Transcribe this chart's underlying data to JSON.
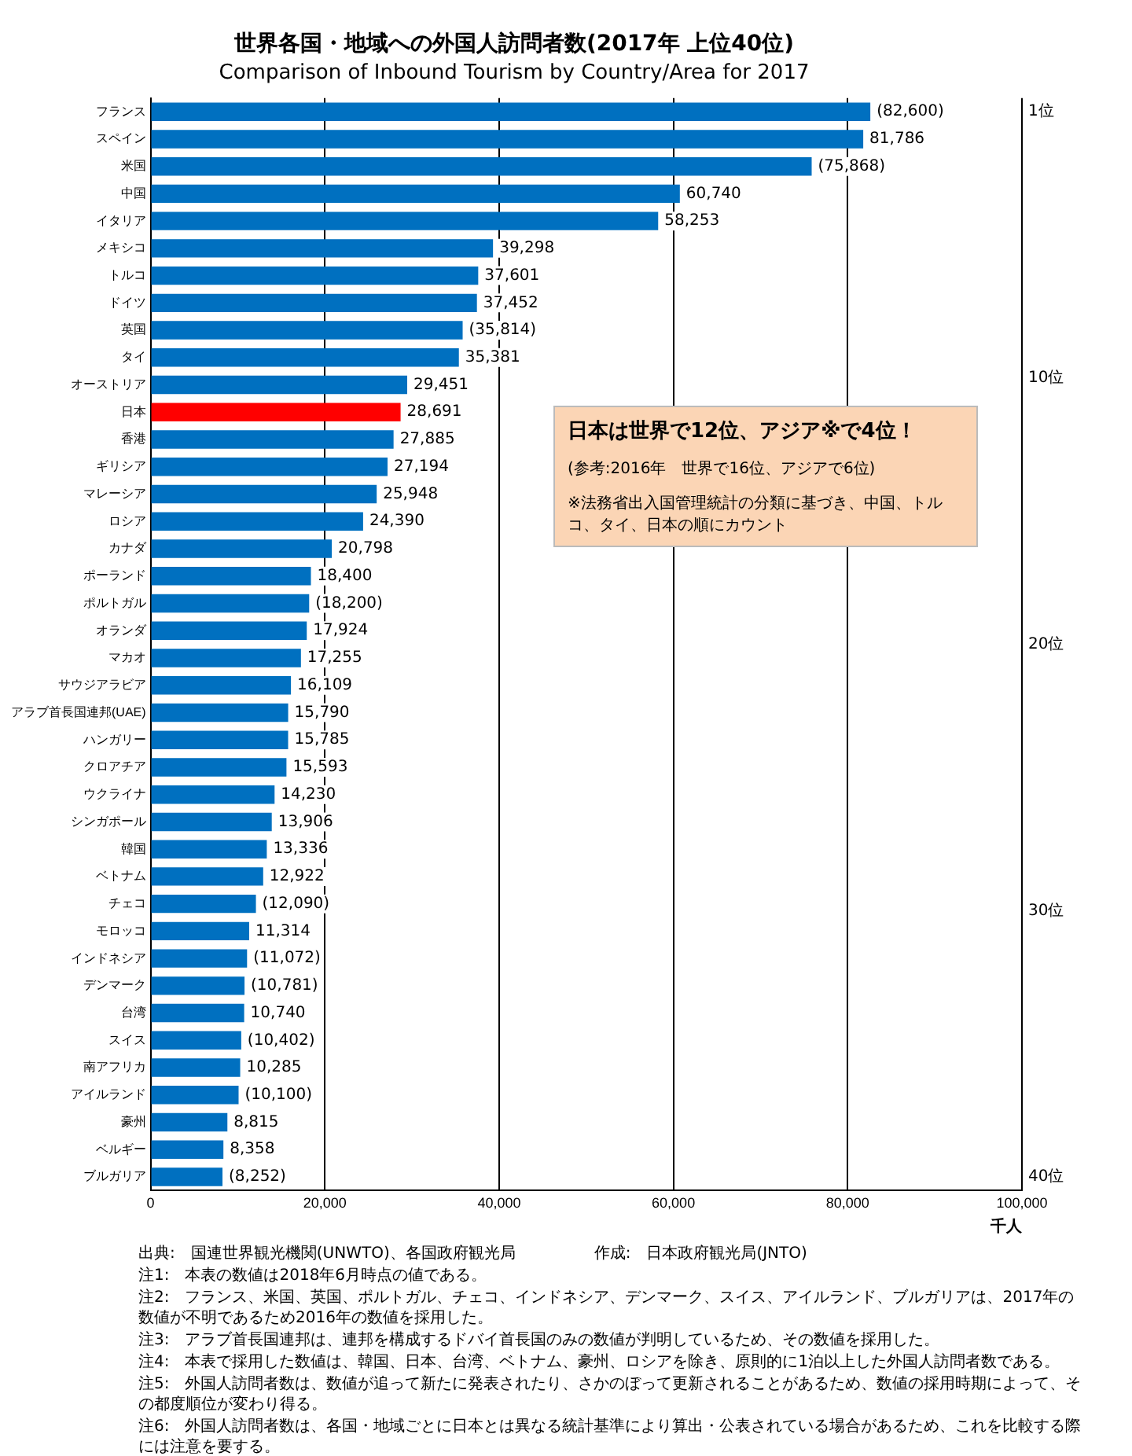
{
  "chart_data": {
    "type": "bar",
    "orientation": "horizontal",
    "title": "世界各国・地域への外国人訪問者数(2017年 上位40位)",
    "subtitle": "Comparison of Inbound Tourism by Country/Area for 2017",
    "xlabel": "千人",
    "categories": [
      "フランス",
      "スペイン",
      "米国",
      "中国",
      "イタリア",
      "メキシコ",
      "トルコ",
      "ドイツ",
      "英国",
      "タイ",
      "オーストリア",
      "日本",
      "香港",
      "ギリシア",
      "マレーシア",
      "ロシア",
      "カナダ",
      "ポーランド",
      "ポルトガル",
      "オランダ",
      "マカオ",
      "サウジアラビア",
      "アラブ首長国連邦(UAE)",
      "ハンガリー",
      "クロアチア",
      "ウクライナ",
      "シンガポール",
      "韓国",
      "ベトナム",
      "チェコ",
      "モロッコ",
      "インドネシア",
      "デンマーク",
      "台湾",
      "スイス",
      "南アフリカ",
      "アイルランド",
      "豪州",
      "ベルギー",
      "ブルガリア"
    ],
    "values": [
      82600,
      81786,
      75868,
      60740,
      58253,
      39298,
      37601,
      37452,
      35814,
      35381,
      29451,
      28691,
      27885,
      27194,
      25948,
      24390,
      20798,
      18400,
      18200,
      17924,
      17255,
      16109,
      15790,
      15785,
      15593,
      14230,
      13906,
      13336,
      12922,
      12090,
      11314,
      11072,
      10781,
      10740,
      10402,
      10285,
      10100,
      8815,
      8358,
      8252
    ],
    "value_labels": [
      "(82,600)",
      "81,786",
      "(75,868)",
      "60,740",
      "58,253",
      "39,298",
      "37,601",
      "37,452",
      "(35,814)",
      "35,381",
      "29,451",
      "28,691",
      "27,885",
      "27,194",
      "25,948",
      "24,390",
      "20,798",
      "18,400",
      "(18,200)",
      "17,924",
      "17,255",
      "16,109",
      "15,790",
      "15,785",
      "15,593",
      "14,230",
      "13,906",
      "13,336",
      "12,922",
      "(12,090)",
      "11,314",
      "(11,072)",
      "(10,781)",
      "10,740",
      "(10,402)",
      "10,285",
      "(10,100)",
      "8,815",
      "8,358",
      "(8,252)"
    ],
    "colors": [
      "#0070c0",
      "#0070c0",
      "#0070c0",
      "#0070c0",
      "#0070c0",
      "#0070c0",
      "#0070c0",
      "#0070c0",
      "#0070c0",
      "#0070c0",
      "#0070c0",
      "#ff0000",
      "#0070c0",
      "#0070c0",
      "#0070c0",
      "#0070c0",
      "#0070c0",
      "#0070c0",
      "#0070c0",
      "#0070c0",
      "#0070c0",
      "#0070c0",
      "#0070c0",
      "#0070c0",
      "#0070c0",
      "#0070c0",
      "#0070c0",
      "#0070c0",
      "#0070c0",
      "#0070c0",
      "#0070c0",
      "#0070c0",
      "#0070c0",
      "#0070c0",
      "#0070c0",
      "#0070c0",
      "#0070c0",
      "#0070c0",
      "#0070c0",
      "#0070c0"
    ],
    "xlim": [
      0,
      100000
    ],
    "xticks": [
      {
        "value": 0,
        "label": "0"
      },
      {
        "value": 20000,
        "label": "20,000"
      },
      {
        "value": 40000,
        "label": "40,000"
      },
      {
        "value": 60000,
        "label": "60,000"
      },
      {
        "value": 80000,
        "label": "80,000"
      },
      {
        "value": 100000,
        "label": "100,000"
      }
    ],
    "grid": "x",
    "legend": false,
    "annotations": [
      "日本は世界で12位、アジア※で4位！",
      "(参考:2016年　世界で16位、アジアで6位)",
      "※法務省出入国管理統計の分類に基づき、中国、トルコ、タイ、日本の順にカウント",
      "1位",
      "10位",
      "20位",
      "30位",
      "40位",
      "出典:　国連世界観光機関(UNWTO)、各国政府観光局　　　　　作成:　日本政府観光局(JNTO)",
      "注1:　本表の数値は2018年6月時点の値である。",
      "注2:　フランス、米国、英国、ポルトガル、チェコ、インドネシア、デンマーク、スイス、アイルランド、ブルガリアは、2017年の数値が不明であるため2016年の数値を採用した。",
      "注3:　アラブ首長国連邦は、連邦を構成するドバイ首長国のみの数値が判明しているため、その数値を採用した。",
      "注4:　本表で採用した数値は、韓国、日本、台湾、ベトナム、豪州、ロシアを除き、原則的に1泊以上した外国人訪問者数である。",
      "注5:　外国人訪問者数は、数値が追って新たに発表されたり、さかのぼって更新されることがあるため、数値の採用時期によって、その都度順位が変わり得る。",
      "注6:　外国人訪問者数は、各国・地域ごとに日本とは異なる統計基準により算出・公表されている場合があるため、これを比較する際には注意を要する。"
    ]
  }
}
